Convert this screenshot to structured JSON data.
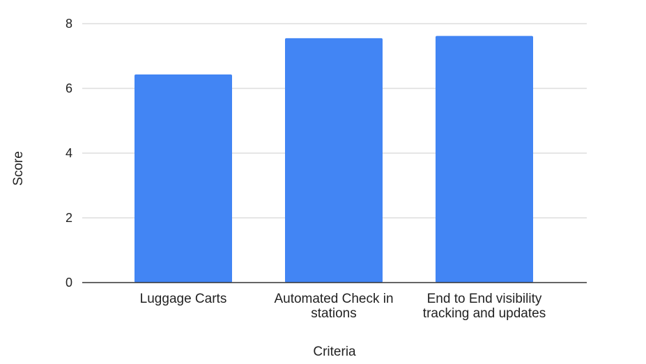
{
  "chart_data": {
    "type": "bar",
    "title": "",
    "xlabel": "Criteria",
    "ylabel": "Score",
    "categories": [
      [
        "Luggage Carts"
      ],
      [
        "Automated Check in",
        "stations"
      ],
      [
        "End to End visibility",
        "tracking and updates"
      ]
    ],
    "values": [
      6.43,
      7.55,
      7.62
    ],
    "ylim": [
      0,
      8
    ],
    "yticks": [
      "0",
      "2",
      "4",
      "6",
      "8"
    ],
    "grid": true,
    "legend": "none",
    "colors": {
      "bar": "#4285f4",
      "grid": "#cccccc",
      "axis": "#333333"
    }
  }
}
